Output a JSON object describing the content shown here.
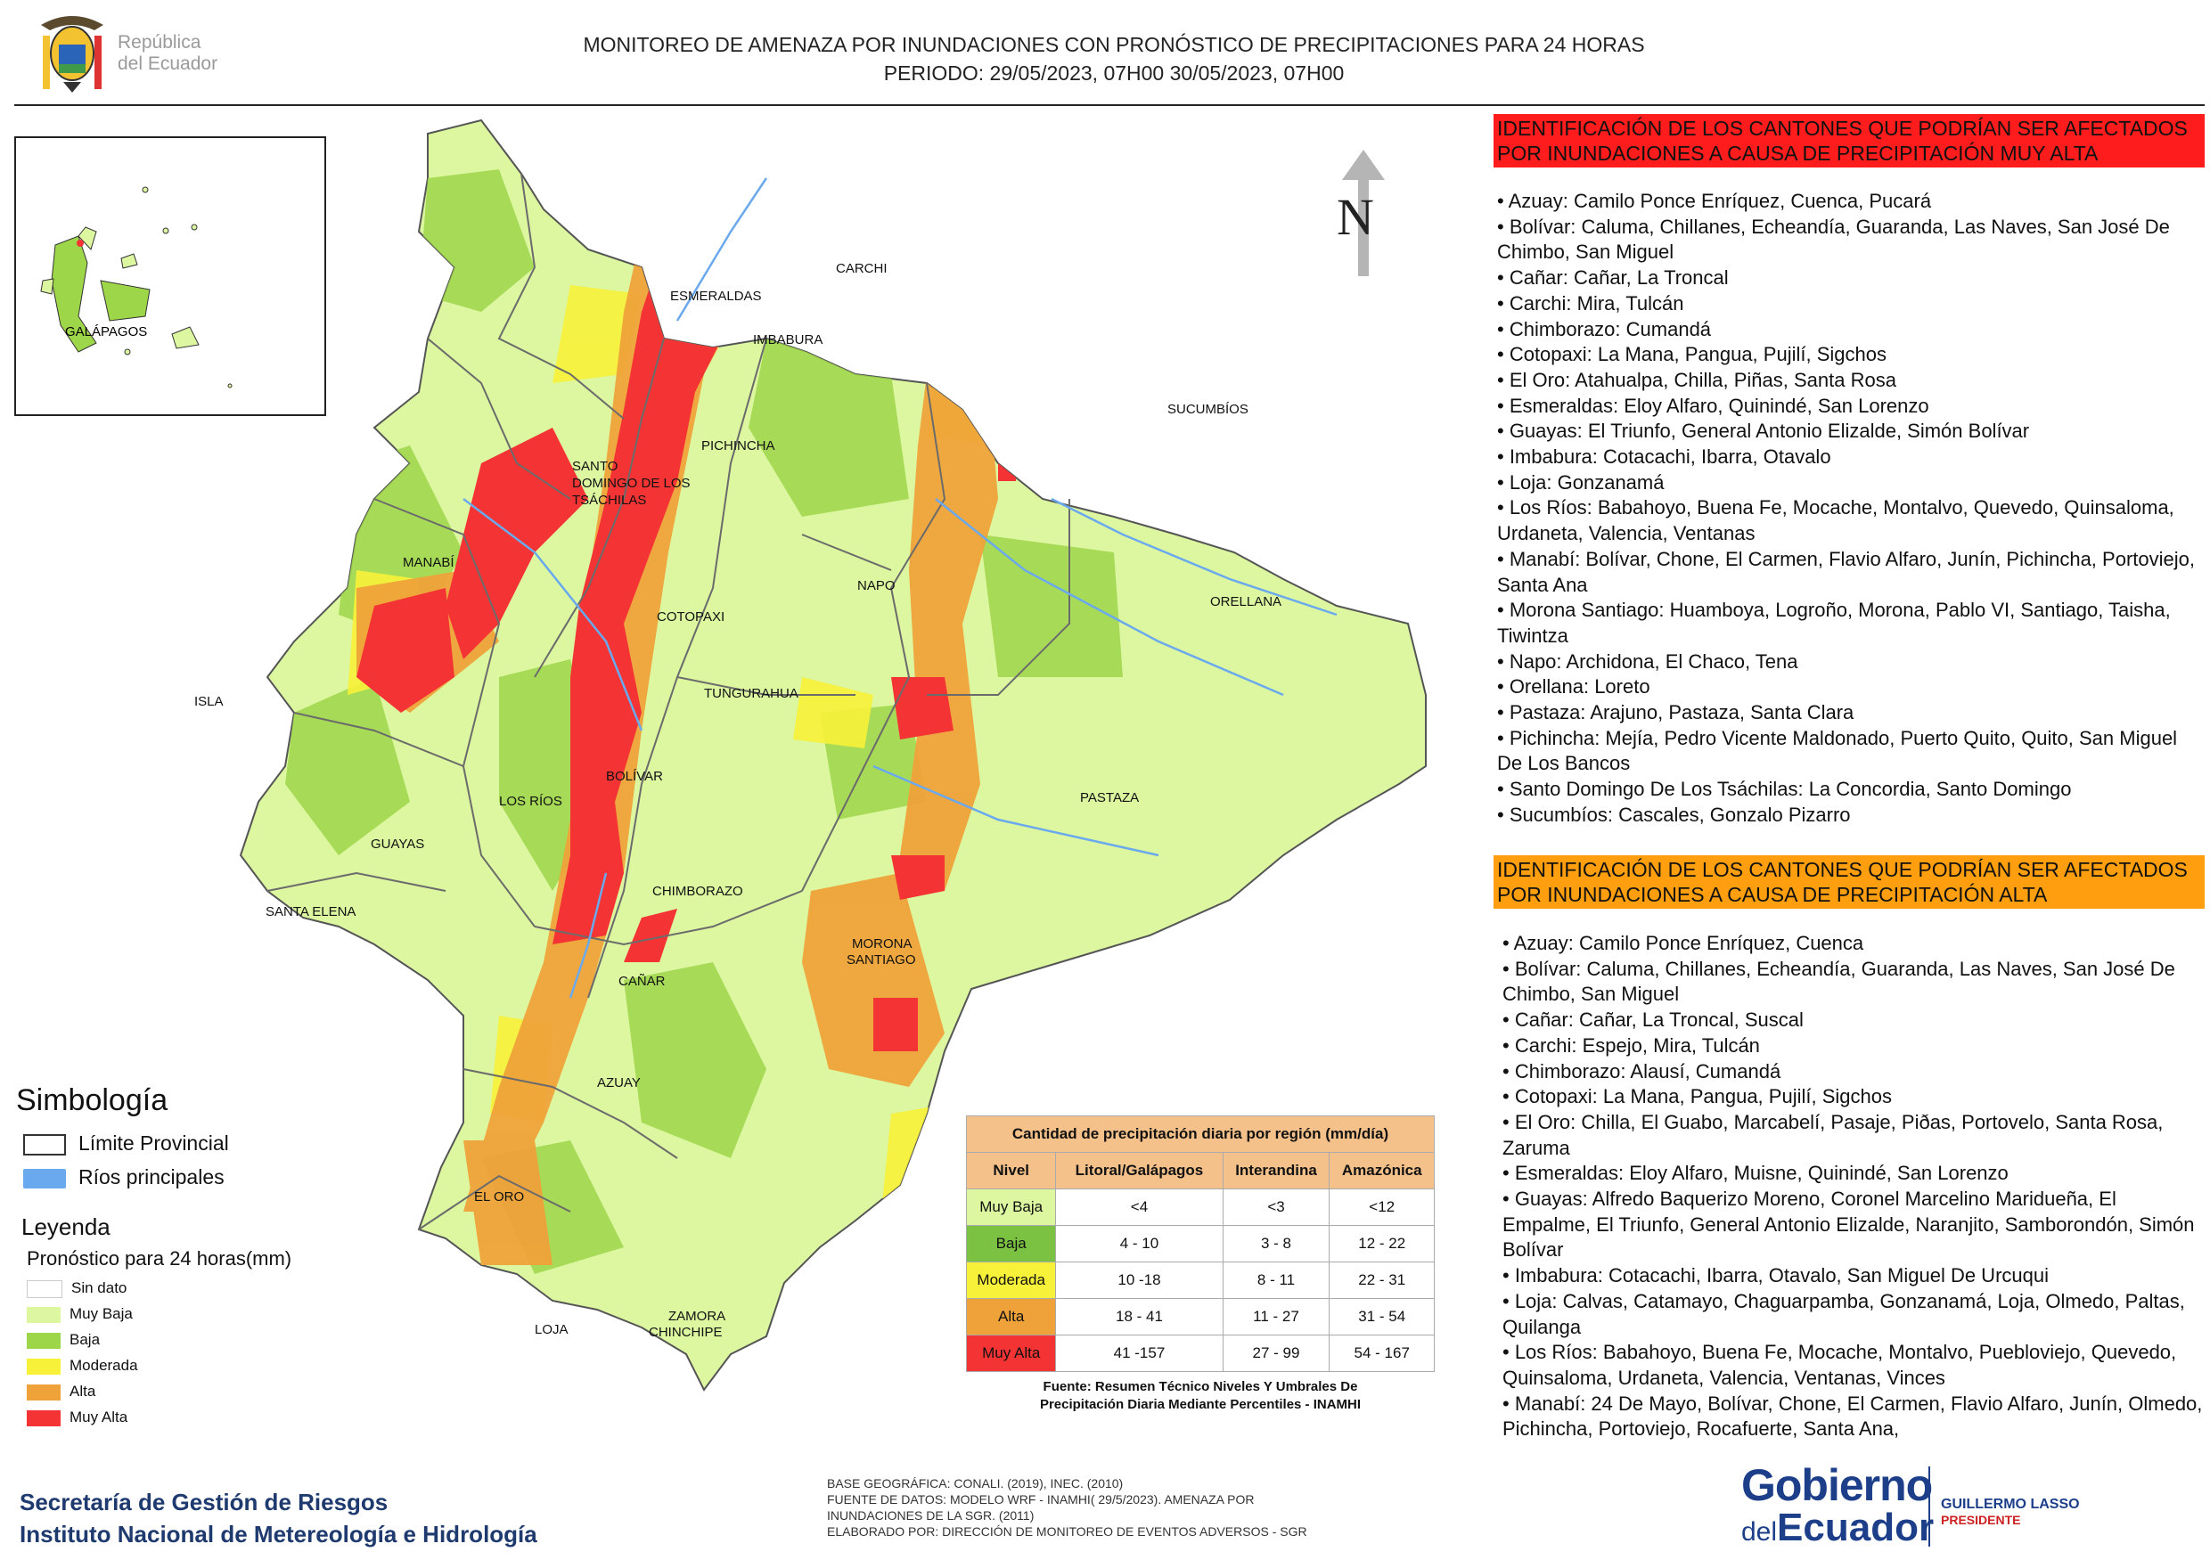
{
  "header": {
    "logo_text_line1": "República",
    "logo_text_line2": "del Ecuador",
    "title_line1": "MONITOREO DE AMENAZA POR INUNDACIONES  CON PRONÓSTICO DE  PRECIPITACIONES PARA 24 HORAS",
    "title_line2": "PERIODO: 29/05/2023, 07H00 30/05/2023, 07H00"
  },
  "map": {
    "north_label": "N",
    "inset_label": "GALÁPAGOS",
    "provinces": [
      "ESMERALDAS",
      "CARCHI",
      "IMBABURA",
      "SUCUMBÍOS",
      "PICHINCHA",
      "SANTO",
      "DOMINGO DE LOS",
      "TSÁCHILAS",
      "MANABÍ",
      "NAPO",
      "ORELLANA",
      "COTOPAXI",
      "TUNGURAHUA",
      "ISLA",
      "LOS RÍOS",
      "BOLÍVAR",
      "PASTAZA",
      "GUAYAS",
      "SANTA ELENA",
      "CHIMBORAZO",
      "MORONA",
      "SANTIAGO",
      "CAÑAR",
      "AZUAY",
      "EL ORO",
      "LOJA",
      "ZAMORA",
      "CHINCHIPE"
    ],
    "colors": {
      "muy_baja": "#dcf7a0",
      "baja": "#9ed64a",
      "moderada": "#f7f13a",
      "alta": "#efa23a",
      "muy_alta": "#f43434",
      "river": "#6aa9ee",
      "border": "#6b6b6b"
    }
  },
  "lists": {
    "muy_alta_heading": "IDENTIFICACIÓN DE LOS CANTONES QUE PODRÍAN SER AFECTADOS POR INUNDACIONES  A CAUSA DE PRECIPITACIÓN MUY ALTA",
    "muy_alta_items": [
      "• Azuay: Camilo Ponce Enríquez, Cuenca, Pucará",
      "• Bolívar: Caluma, Chillanes, Echeandía, Guaranda, Las Naves, San José De Chimbo, San Miguel",
      "• Cañar: Cañar, La Troncal",
      "• Carchi: Mira, Tulcán",
      "• Chimborazo: Cumandá",
      "• Cotopaxi: La Mana, Pangua, Pujilí, Sigchos",
      "• El Oro: Atahualpa, Chilla, Piñas, Santa Rosa",
      "• Esmeraldas: Eloy Alfaro, Quinindé, San Lorenzo",
      "• Guayas: El Triunfo, General Antonio Elizalde, Simón Bolívar",
      "• Imbabura: Cotacachi, Ibarra, Otavalo",
      "• Loja: Gonzanamá",
      "• Los Ríos: Babahoyo, Buena Fe, Mocache, Montalvo, Quevedo, Quinsaloma, Urdaneta, Valencia, Ventanas",
      "• Manabí: Bolívar, Chone, El Carmen, Flavio Alfaro, Junín, Pichincha, Portoviejo, Santa Ana",
      "• Morona Santiago: Huamboya, Logroño, Morona, Pablo VI, Santiago, Taisha, Tiwintza",
      "• Napo: Archidona, El Chaco, Tena",
      "• Orellana: Loreto",
      "• Pastaza: Arajuno, Pastaza, Santa Clara",
      "• Pichincha: Mejía, Pedro Vicente Maldonado, Puerto Quito, Quito, San Miguel De Los Bancos",
      "• Santo Domingo De Los Tsáchilas: La Concordia, Santo Domingo",
      "• Sucumbíos: Cascales, Gonzalo Pizarro"
    ],
    "alta_heading": "IDENTIFICACIÓN DE LOS CANTONES QUE  PODRÍAN SER AFECTADOS POR INUNDACIONES  A CAUSA DE PRECIPITACIÓN ALTA",
    "alta_items": [
      "• Azuay: Camilo Ponce Enríquez, Cuenca",
      "• Bolívar: Caluma, Chillanes, Echeandía, Guaranda, Las Naves, San José De Chimbo, San Miguel",
      "• Cañar: Cañar, La Troncal, Suscal",
      "• Carchi: Espejo, Mira, Tulcán",
      "• Chimborazo: Alausí, Cumandá",
      "• Cotopaxi: La Mana, Pangua, Pujilí, Sigchos",
      "• El Oro: Chilla, El Guabo, Marcabelí, Pasaje, Piðas, Portovelo, Santa Rosa, Zaruma",
      "• Esmeraldas: Eloy Alfaro, Muisne, Quinindé, San Lorenzo",
      "• Guayas: Alfredo Baquerizo Moreno, Coronel Marcelino Maridueña, El Empalme, El Triunfo, General Antonio Elizalde, Naranjito, Samborondón, Simón Bolívar",
      "• Imbabura: Cotacachi, Ibarra, Otavalo, San Miguel De Urcuqui",
      "• Loja: Calvas, Catamayo, Chaguarpamba, Gonzanamá, Loja, Olmedo, Paltas, Quilanga",
      "• Los Ríos: Babahoyo, Buena Fe, Mocache, Montalvo, Puebloviejo, Quevedo, Quinsaloma, Urdaneta, Valencia, Ventanas, Vinces",
      "• Manabí: 24 De Mayo, Bolívar, Chone, El Carmen, Flavio Alfaro, Junín, Olmedo, Pichincha, Portoviejo, Rocafuerte, Santa Ana,"
    ]
  },
  "legend": {
    "simbologia_title": "Simbología",
    "limite_label": "Límite Provincial",
    "rios_label": "Ríos principales",
    "leyenda_title": "Leyenda",
    "leyenda_sub": "Pronóstico para 24 horas(mm)",
    "classes": [
      {
        "label": "Sin dato",
        "color": "#ffffff"
      },
      {
        "label": "Muy Baja",
        "color": "#dcf7a0"
      },
      {
        "label": "Baja",
        "color": "#9ed64a"
      },
      {
        "label": "Moderada",
        "color": "#f7f13a"
      },
      {
        "label": "Alta",
        "color": "#efa23a"
      },
      {
        "label": "Muy Alta",
        "color": "#f43434"
      }
    ]
  },
  "threshold_table": {
    "caption": "Cantidad de precipitación diaria por región (mm/día)",
    "headers": [
      "Nivel",
      "Litoral/Galápagos",
      "Interandina",
      "Amazónica"
    ],
    "rows": [
      {
        "level": "Muy Baja",
        "color": "#dcf7a0",
        "litoral": "<4",
        "interandina": "<3",
        "amazonica": "<12"
      },
      {
        "level": "Baja",
        "color": "#7cc242",
        "litoral": "4 - 10",
        "interandina": "3 - 8",
        "amazonica": "12 - 22"
      },
      {
        "level": "Moderada",
        "color": "#f7f13a",
        "litoral": "10 -18",
        "interandina": "8 - 11",
        "amazonica": "22 - 31"
      },
      {
        "level": "Alta",
        "color": "#efa23a",
        "litoral": "18 - 41",
        "interandina": "11 - 27",
        "amazonica": "31 - 54"
      },
      {
        "level": "Muy Alta",
        "color": "#f43434",
        "litoral": "41 -157",
        "interandina": "27 - 99",
        "amazonica": "54 - 167"
      }
    ],
    "source_line1": "Fuente: Resumen Técnico Niveles Y Umbrales De",
    "source_line2": "Precipitación Diaria Mediante Percentiles - INAMHI"
  },
  "footer": {
    "org_line1": "Secretaría de Gestión de Riesgos",
    "org_line2": "Instituto Nacional de Metereología e Hidrología",
    "notes": [
      "BASE GEOGRÁFICA: CONALI. (2019), INEC. (2010)",
      "FUENTE DE DATOS: MODELO WRF - INAMHI( 29/5/2023).  AMENAZA POR",
      "INUNDACIONES DE LA SGR. (2011)",
      "ELABORADO POR: DIRECCIÓN DE MONITOREO DE EVENTOS ADVERSOS - SGR"
    ],
    "gob_line1": "Gobierno",
    "gob_line2_small": "del",
    "gob_line2_big": "Ecuador",
    "president_name": "GUILLERMO LASSO",
    "president_title": "PRESIDENTE"
  }
}
